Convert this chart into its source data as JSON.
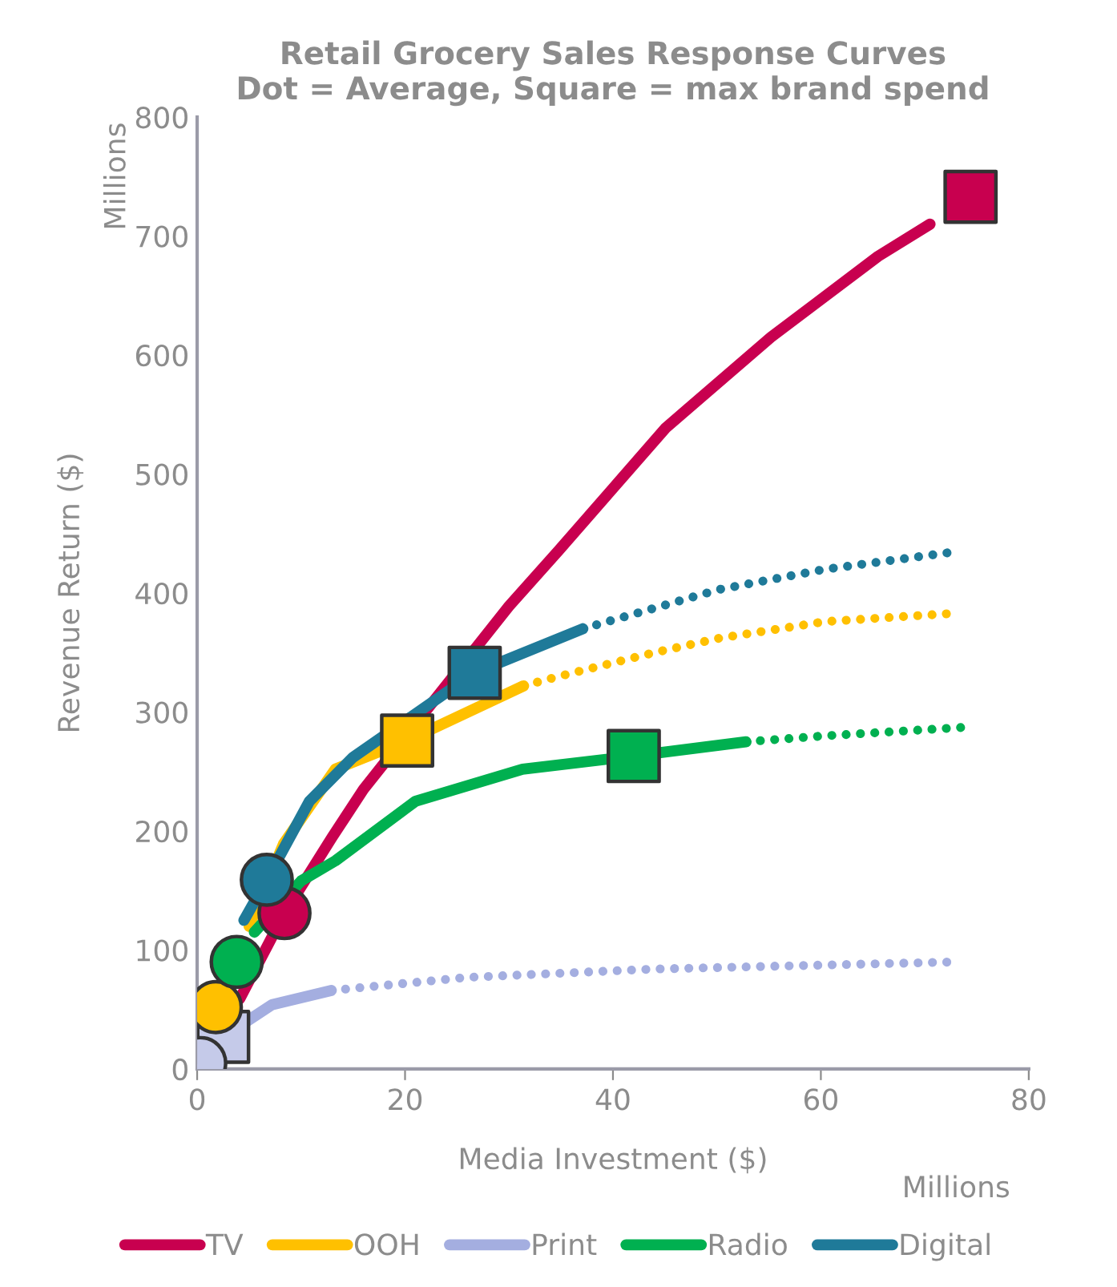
{
  "chart_data": {
    "type": "line",
    "title": "Retail Grocery Sales Response Curves\nDot = Average, Square = max brand spend",
    "xlabel": "Media Investment ($)",
    "ylabel": "Revenue Return ($)",
    "annotations": [
      "Millions",
      "Millions"
    ],
    "xlim": [
      0,
      80
    ],
    "xticks": [
      0,
      20,
      40,
      60,
      80
    ],
    "ylim": [
      0,
      800
    ],
    "yticks": [
      0,
      100,
      200,
      300,
      400,
      500,
      600,
      700,
      800
    ],
    "grid": false,
    "legend": "bottom",
    "series": [
      {
        "name": "TV",
        "color": "#c8004f",
        "line_style": "solid",
        "x": [
          4.1,
          8.4,
          13,
          16,
          30,
          34.8,
          45.1,
          55.2,
          65.5,
          70.5
        ],
        "values": [
          59,
          131,
          195,
          235,
          389,
          436,
          539,
          615,
          683,
          710
        ]
      },
      {
        "name": "OOH",
        "color": "#ffc000",
        "line_style": "solid",
        "x": [
          5,
          8.3,
          13.3,
          20.2,
          31.4
        ],
        "values": [
          120,
          189,
          252,
          276,
          322
        ]
      },
      {
        "color": "#ffc000",
        "line_style": "dotted",
        "x": [
          31.4,
          34.8,
          44,
          50.2,
          60.4,
          72.9
        ],
        "values": [
          322,
          330,
          350,
          362,
          376,
          383
        ]
      },
      {
        "name": "Print",
        "color": "#a4aee0",
        "line_style": "solid",
        "x": [
          0.3,
          2.5,
          7.2,
          12.9
        ],
        "values": [
          5,
          27,
          54,
          66
        ]
      },
      {
        "color": "#a4aee0",
        "line_style": "dotted",
        "x": [
          12.9,
          26,
          44,
          73
        ],
        "values": [
          66,
          77,
          84,
          90
        ]
      },
      {
        "name": "Radio",
        "color": "#00b050",
        "line_style": "solid",
        "x": [
          5.5,
          10,
          13.3,
          21,
          31.3,
          42,
          52.8
        ],
        "values": [
          115,
          158,
          175,
          225,
          252,
          263,
          275
        ]
      },
      {
        "color": "#00b050",
        "line_style": "dotted",
        "x": [
          52.8,
          60.4,
          73.5
        ],
        "values": [
          275,
          280,
          287
        ]
      },
      {
        "name": "Digital",
        "color": "#1f7a99",
        "line_style": "solid",
        "x": [
          4.5,
          6.7,
          10.8,
          15,
          26.7,
          37.1
        ],
        "values": [
          125,
          159,
          225,
          262,
          333,
          370
        ]
      },
      {
        "color": "#1f7a99",
        "line_style": "dotted",
        "x": [
          37.1,
          50.2,
          60.4,
          73.2
        ],
        "values": [
          370,
          403,
          420,
          435
        ]
      },
      {
        "type": "scatter",
        "marker": "circle",
        "x": [
          8.4,
          1.8,
          0.3,
          3.8,
          6.7
        ],
        "values": [
          131,
          52,
          5,
          90,
          159
        ],
        "colors": [
          "#c8004f",
          "#ffc000",
          "#c5cae9",
          "#00b050",
          "#1f7a99"
        ]
      },
      {
        "type": "scatter",
        "marker": "square",
        "x": [
          74.4,
          20.2,
          2.5,
          42,
          26.7
        ],
        "values": [
          733,
          276,
          27,
          263,
          333
        ],
        "colors": [
          "#c8004f",
          "#ffc000",
          "#c5cae9",
          "#00b050",
          "#1f7a99"
        ]
      }
    ]
  }
}
